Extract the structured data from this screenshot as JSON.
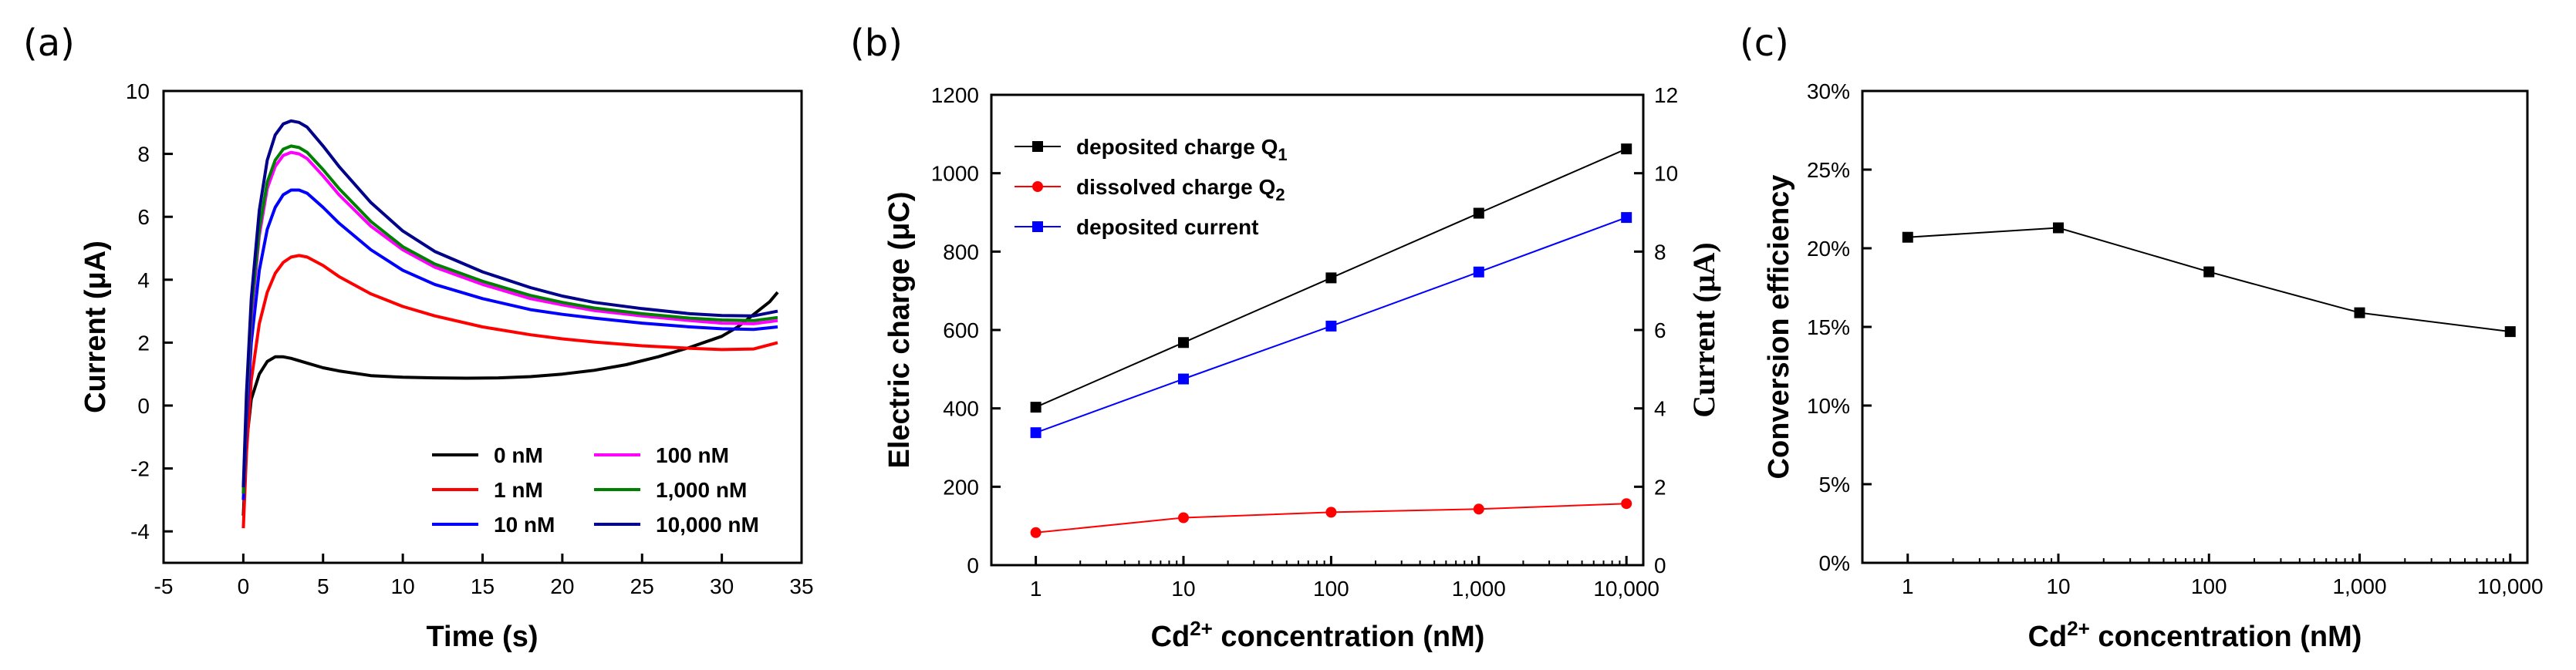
{
  "panels": [
    "(a)",
    "(b)",
    "(c)"
  ],
  "chart_data": [
    {
      "type": "line",
      "panel": "(a)",
      "xlabel": "Time (s)",
      "ylabel": "Current (μA)",
      "xlim": [
        -5,
        35
      ],
      "ylim": [
        -5,
        10
      ],
      "xticks": [
        -5,
        0,
        5,
        10,
        15,
        20,
        25,
        30,
        35
      ],
      "yticks": [
        -4,
        -2,
        0,
        2,
        4,
        6,
        8,
        10
      ],
      "legend_position": "bottom-right",
      "series": [
        {
          "name": "0 nM",
          "color": "#000000",
          "x": [
            0,
            0.2,
            0.5,
            1,
            1.5,
            2,
            2.5,
            3,
            4,
            5,
            6,
            8,
            10,
            12,
            14,
            16,
            18,
            20,
            22,
            24,
            26,
            28,
            30,
            31,
            32,
            33,
            33.5
          ],
          "y": [
            -3.5,
            -1.2,
            0.2,
            1.0,
            1.4,
            1.55,
            1.55,
            1.5,
            1.35,
            1.2,
            1.1,
            0.95,
            0.9,
            0.88,
            0.87,
            0.88,
            0.92,
            1.0,
            1.12,
            1.3,
            1.55,
            1.85,
            2.2,
            2.5,
            2.9,
            3.3,
            3.6
          ]
        },
        {
          "name": "1 nM",
          "color": "#ff0000",
          "x": [
            0,
            0.2,
            0.5,
            1,
            1.5,
            2,
            2.5,
            3,
            3.5,
            4,
            5,
            6,
            8,
            10,
            12,
            15,
            18,
            20,
            22,
            25,
            28,
            30,
            32,
            33.5
          ],
          "y": [
            -3.9,
            -1.5,
            0.8,
            2.6,
            3.6,
            4.2,
            4.55,
            4.72,
            4.77,
            4.72,
            4.45,
            4.1,
            3.55,
            3.15,
            2.85,
            2.5,
            2.25,
            2.12,
            2.02,
            1.9,
            1.82,
            1.78,
            1.8,
            2.0
          ]
        },
        {
          "name": "10 nM",
          "color": "#0000ff",
          "x": [
            0,
            0.2,
            0.5,
            1,
            1.5,
            2,
            2.5,
            3,
            3.5,
            4,
            5,
            6,
            8,
            10,
            12,
            15,
            18,
            20,
            22,
            25,
            28,
            30,
            32,
            33.5
          ],
          "y": [
            -3.0,
            -0.5,
            2.0,
            4.3,
            5.6,
            6.3,
            6.7,
            6.85,
            6.85,
            6.75,
            6.3,
            5.8,
            4.95,
            4.3,
            3.85,
            3.4,
            3.05,
            2.9,
            2.78,
            2.62,
            2.5,
            2.44,
            2.42,
            2.5
          ]
        },
        {
          "name": "100 nM",
          "color": "#ff00ff",
          "x": [
            0,
            0.2,
            0.5,
            1,
            1.5,
            2,
            2.5,
            3,
            3.5,
            4,
            5,
            6,
            8,
            10,
            12,
            15,
            18,
            20,
            22,
            25,
            28,
            30,
            32,
            33.5
          ],
          "y": [
            -2.8,
            0.0,
            2.8,
            5.4,
            6.9,
            7.6,
            7.95,
            8.05,
            8.0,
            7.85,
            7.3,
            6.7,
            5.7,
            4.95,
            4.4,
            3.85,
            3.4,
            3.2,
            3.02,
            2.85,
            2.7,
            2.62,
            2.6,
            2.7
          ]
        },
        {
          "name": "1,000 nM",
          "color": "#008000",
          "x": [
            0,
            0.2,
            0.5,
            1,
            1.5,
            2,
            2.5,
            3,
            3.5,
            4,
            5,
            6,
            8,
            10,
            12,
            15,
            18,
            20,
            22,
            25,
            28,
            30,
            32,
            33.5
          ],
          "y": [
            -2.8,
            0.1,
            3.0,
            5.6,
            7.1,
            7.8,
            8.15,
            8.25,
            8.2,
            8.05,
            7.5,
            6.9,
            5.85,
            5.05,
            4.5,
            3.95,
            3.5,
            3.28,
            3.1,
            2.92,
            2.78,
            2.72,
            2.7,
            2.8
          ]
        },
        {
          "name": "10,000 nM",
          "color": "#00008b",
          "x": [
            0,
            0.2,
            0.5,
            1,
            1.5,
            2,
            2.5,
            3,
            3.5,
            4,
            5,
            6,
            8,
            10,
            12,
            15,
            18,
            20,
            22,
            25,
            28,
            30,
            32,
            33.5
          ],
          "y": [
            -2.6,
            0.4,
            3.4,
            6.2,
            7.8,
            8.6,
            8.95,
            9.05,
            9.0,
            8.85,
            8.25,
            7.6,
            6.45,
            5.55,
            4.9,
            4.25,
            3.75,
            3.48,
            3.28,
            3.08,
            2.92,
            2.86,
            2.85,
            3.0
          ]
        }
      ]
    },
    {
      "type": "line",
      "panel": "(b)",
      "xlabel_main": "Cd",
      "xlabel_sup": "2+",
      "xlabel_rest": " concentration (nM)",
      "ylabel": "Electric charge (μC)",
      "ylabel_right": "Current (μA)",
      "x_scale": "log",
      "categories": [
        "1",
        "10",
        "100",
        "1,000",
        "10,000"
      ],
      "x": [
        1,
        10,
        100,
        1000,
        10000
      ],
      "ylim": [
        0,
        1200
      ],
      "yticks": [
        0,
        200,
        400,
        600,
        800,
        1000,
        1200
      ],
      "ylim_right": [
        0,
        12
      ],
      "yticks_right": [
        0,
        2,
        4,
        6,
        8,
        10,
        12
      ],
      "legend_position": "top-left",
      "series": [
        {
          "name": "deposited charge Q",
          "sub": "1",
          "color": "#000000",
          "marker": "square",
          "axis": "left",
          "values": [
            403,
            568,
            733,
            898,
            1062
          ]
        },
        {
          "name": "dissolved charge Q",
          "sub": "2",
          "color": "#ff0000",
          "marker": "circle",
          "axis": "left",
          "values": [
            83,
            121,
            135,
            143,
            157
          ]
        },
        {
          "name": "deposited current",
          "sub": "",
          "color": "#0000ff",
          "marker": "square",
          "axis": "right",
          "values": [
            3.38,
            4.75,
            6.1,
            7.48,
            8.87
          ]
        }
      ]
    },
    {
      "type": "line",
      "panel": "(c)",
      "xlabel_main": "Cd",
      "xlabel_sup": "2+",
      "xlabel_rest": " concentration (nM)",
      "ylabel": "Conversion efficiency",
      "x_scale": "log",
      "categories": [
        "1",
        "10",
        "100",
        "1,000",
        "10,000"
      ],
      "x": [
        1,
        10,
        100,
        1000,
        10000
      ],
      "ylim": [
        0,
        30
      ],
      "yticks": [
        "0%",
        "5%",
        "10%",
        "15%",
        "20%",
        "25%",
        "30%"
      ],
      "series": [
        {
          "name": "Conversion efficiency",
          "color": "#000000",
          "marker": "square",
          "values": [
            20.7,
            21.3,
            18.5,
            15.9,
            14.7
          ]
        }
      ]
    }
  ]
}
